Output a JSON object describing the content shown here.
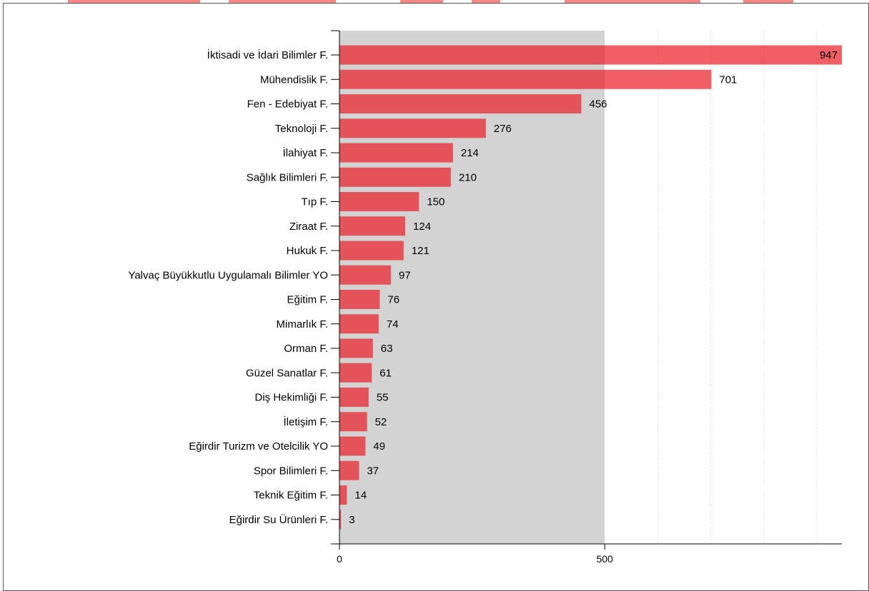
{
  "colors": {
    "bar": "#e8232b",
    "bar_opacity": 0.72,
    "shaded_region": "#d3d3d3",
    "grid": "#d0d0d0",
    "axis": "#000000",
    "frame_border": "#555555",
    "watermark_top": "#f26b6b"
  },
  "chart_data": {
    "type": "bar",
    "orientation": "horizontal",
    "categories": [
      "İktisadi ve İdari Bilimler F.",
      "Mühendislik F.",
      "Fen - Edebiyat F.",
      "Teknoloji F.",
      "İlahiyat F.",
      "Sağlık Bilimleri F.",
      "Tıp F.",
      "Ziraat F.",
      "Hukuk F.",
      "Yalvaç Büyükkutlu Uygulamalı Bilimler YO",
      "Eğitim F.",
      "Mimarlık F.",
      "Orman F.",
      "Güzel Sanatlar F.",
      "Diş Hekimliği F.",
      "İletişim F.",
      "Eğirdir Turizm ve Otelcilik YO",
      "Spor Bilimleri F.",
      "Teknik Eğitim F.",
      "Eğirdir Su Ürünleri F."
    ],
    "values": [
      947,
      701,
      456,
      276,
      214,
      210,
      150,
      124,
      121,
      97,
      76,
      74,
      63,
      61,
      55,
      52,
      49,
      37,
      14,
      3
    ],
    "xlim": [
      0,
      947
    ],
    "x_ticks": [
      0,
      500
    ],
    "shaded_range": [
      0,
      500
    ],
    "grid_lines": [
      600,
      700,
      800,
      900
    ],
    "data_labels": true,
    "title": "",
    "xlabel": "",
    "ylabel": "",
    "legend": "none"
  }
}
